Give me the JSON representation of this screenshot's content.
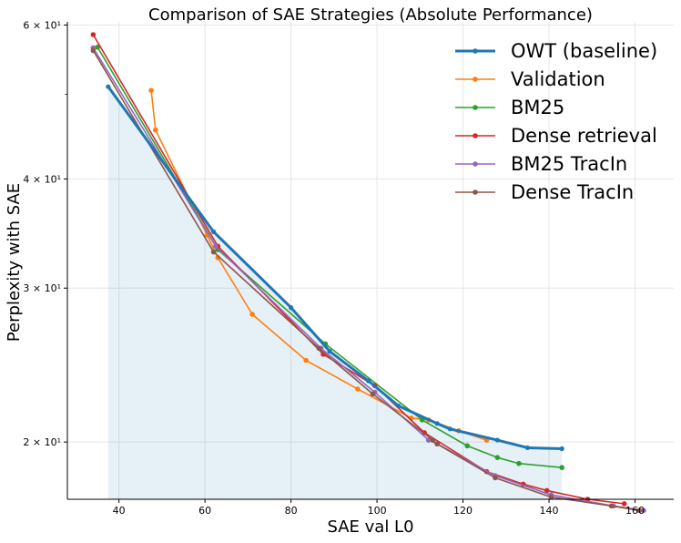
{
  "chart_data": {
    "type": "line",
    "title": "Comparison of SAE Strategies (Absolute Performance)",
    "xlabel": "SAE val L0",
    "ylabel": "Perplexity with SAE",
    "yscale": "log",
    "xlim": [
      28,
      169
    ],
    "ylim": [
      17.2,
      60.5
    ],
    "x_ticks": [
      40,
      60,
      80,
      100,
      120,
      140,
      160
    ],
    "y_ticks": [
      {
        "value": 20,
        "label": "2 × 10¹"
      },
      {
        "value": 30,
        "label": "3 × 10¹"
      },
      {
        "value": 40,
        "label": "4 × 10¹"
      },
      {
        "value": 60,
        "label": "6 × 10¹"
      }
    ],
    "y_minor_ticks": [
      50
    ],
    "grid": true,
    "legend_position": "top-right",
    "shaded_region": {
      "x_start": 37.5,
      "x_end": 143,
      "color": "#1f77b4",
      "opacity": 0.11
    },
    "series": [
      {
        "name": "OWT (baseline)",
        "color": "#1f77b4",
        "thick": true,
        "x": [
          37.5,
          62,
          80,
          89,
          98,
          105,
          114,
          117,
          128,
          135,
          143
        ],
        "y": [
          51,
          34.8,
          28.5,
          25.4,
          23.5,
          22.0,
          21.0,
          20.7,
          20.1,
          19.7,
          19.65
        ]
      },
      {
        "name": "Validation",
        "color": "#ff7f0e",
        "thick": false,
        "x": [
          47.5,
          48.5,
          60.5,
          63,
          71,
          83.5,
          95.5,
          108,
          112,
          119,
          125.5
        ],
        "y": [
          50.5,
          45.5,
          34.5,
          32.5,
          28.0,
          24.8,
          23.0,
          21.3,
          21.2,
          20.6,
          20.1
        ]
      },
      {
        "name": "BM25",
        "color": "#2ca02c",
        "thick": false,
        "x": [
          35,
          63,
          88,
          110.5,
          121,
          128,
          133,
          143
        ],
        "y": [
          56.6,
          33.2,
          25.9,
          21.2,
          19.8,
          19.2,
          18.9,
          18.7
        ]
      },
      {
        "name": "Dense retrieval",
        "color": "#d62728",
        "thick": false,
        "x": [
          34,
          63,
          87.5,
          99.5,
          111,
          125.5,
          134,
          139.5,
          149,
          157.5
        ],
        "y": [
          58.5,
          33.5,
          25.2,
          23.2,
          20.5,
          18.5,
          17.9,
          17.6,
          17.2,
          17.0
        ]
      },
      {
        "name": "BM25 TracIn",
        "color": "#9467bd",
        "thick": false,
        "x": [
          34,
          62.5,
          87,
          99.5,
          112,
          114,
          127.5,
          140.5,
          155,
          162
        ],
        "y": [
          56.5,
          33.5,
          25.6,
          22.8,
          20.1,
          19.9,
          18.3,
          17.4,
          16.9,
          16.7
        ]
      },
      {
        "name": "Dense TracIn",
        "color": "#8c564b",
        "thick": false,
        "x": [
          34,
          62,
          86.5,
          99,
          113,
          114,
          127.5,
          140.5,
          154.5,
          161
        ],
        "y": [
          56.1,
          33.0,
          25.6,
          22.7,
          20.1,
          19.9,
          18.2,
          17.3,
          16.9,
          16.7
        ]
      }
    ]
  }
}
